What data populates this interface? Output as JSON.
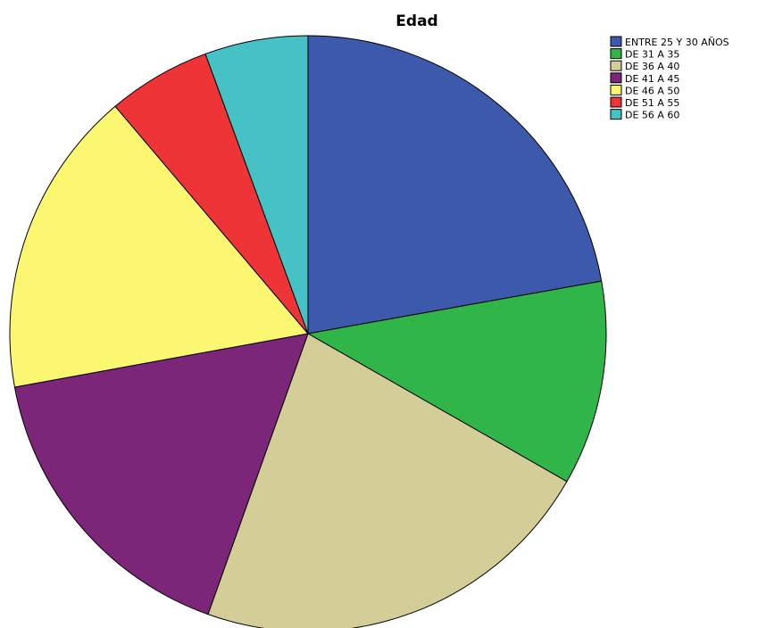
{
  "chart_data": {
    "type": "pie",
    "title": "Edad",
    "legend_position": "top-right",
    "start": "12 o'clock",
    "direction": "clockwise",
    "slices": [
      {
        "label": "ENTRE 25 Y 30 AÑOS",
        "value": 22.2,
        "color": "#3d59ab"
      },
      {
        "label": "DE 31 A 35",
        "value": 11.1,
        "color": "#2fb548"
      },
      {
        "label": "DE 36 A 40",
        "value": 22.2,
        "color": "#d3ce98"
      },
      {
        "label": "DE 41 A 45",
        "value": 16.7,
        "color": "#7b2679"
      },
      {
        "label": "DE 46 A 50",
        "value": 16.7,
        "color": "#fbf771"
      },
      {
        "label": "DE 51 A 55",
        "value": 5.6,
        "color": "#ef3438"
      },
      {
        "label": "DE 56 A 60",
        "value": 5.6,
        "color": "#46c2c5"
      }
    ]
  }
}
